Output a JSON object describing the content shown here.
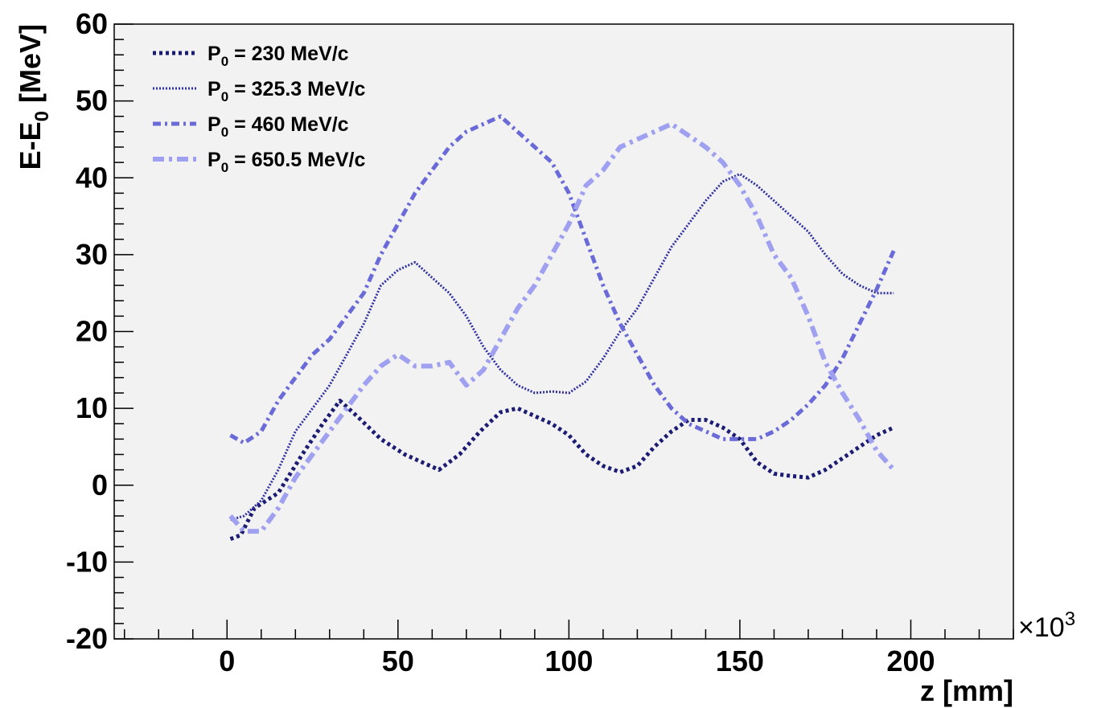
{
  "chart_data": {
    "type": "line",
    "title": "",
    "xlabel": "z [mm]",
    "ylabel_main": "E-E",
    "ylabel_sub": "0",
    "ylabel_unit": " [MeV]",
    "x_exponent_prefix": "×10",
    "x_exponent_power": "3",
    "xlim": [
      -33,
      230
    ],
    "ylim": [
      -20,
      60
    ],
    "x_ticks": [
      0,
      50,
      100,
      150,
      200
    ],
    "x_tick_labels": [
      "0",
      "50",
      "100",
      "150",
      "200"
    ],
    "y_ticks": [
      -20,
      -10,
      0,
      10,
      20,
      30,
      40,
      50,
      60
    ],
    "y_tick_labels": [
      "-20",
      "-10",
      "0",
      "10",
      "20",
      "30",
      "40",
      "50",
      "60"
    ],
    "legend_position": "top-left",
    "grid": false,
    "series": [
      {
        "name": "P0 = 230 MeV/c",
        "label_main": "P",
        "label_sub": "0",
        "label_rest": " = 230 MeV/c",
        "color": "#1c1c73",
        "dash": "4,4",
        "width": 5,
        "x": [
          1,
          4,
          8,
          15,
          22,
          28,
          33,
          38,
          45,
          52,
          57,
          62,
          68,
          74,
          80,
          85,
          90,
          95,
          100,
          105,
          110,
          115,
          120,
          125,
          130,
          135,
          140,
          145,
          150,
          155,
          160,
          165,
          170,
          175,
          180,
          185,
          190,
          195
        ],
        "y": [
          -7,
          -6.5,
          -3,
          -1,
          4,
          8,
          11,
          9,
          6,
          4,
          3,
          2,
          4,
          7,
          9.5,
          10,
          9,
          8,
          6.5,
          4,
          2.5,
          1.7,
          2.5,
          5,
          7,
          8.5,
          8.5,
          7.5,
          6,
          3,
          1.5,
          1.2,
          1,
          2,
          3.5,
          5,
          6.5,
          7.5
        ]
      },
      {
        "name": "P0 = 325.3 MeV/c",
        "label_main": "P",
        "label_sub": "0",
        "label_rest": " = 325.3 MeV/c",
        "color": "#3030a0",
        "dash": "2,2",
        "width": 3,
        "x": [
          1,
          5,
          10,
          15,
          20,
          25,
          30,
          35,
          40,
          45,
          50,
          55,
          60,
          65,
          70,
          75,
          80,
          85,
          90,
          95,
          100,
          105,
          110,
          115,
          120,
          125,
          130,
          135,
          140,
          145,
          150,
          155,
          160,
          165,
          170,
          175,
          180,
          185,
          190,
          195
        ],
        "y": [
          -4.5,
          -4,
          -2,
          2,
          7,
          10,
          13,
          17,
          21,
          26,
          28,
          29,
          27,
          25,
          22,
          18,
          15,
          13,
          12,
          12.2,
          12,
          13.5,
          16.5,
          20,
          23,
          27,
          31,
          34,
          37,
          39.5,
          40.5,
          39,
          37,
          35,
          33,
          30,
          27.5,
          26,
          25,
          25
        ]
      },
      {
        "name": "P0 = 460 MeV/c",
        "label_main": "P",
        "label_sub": "0",
        "label_rest": " = 460 MeV/c",
        "color": "#6a6ad8",
        "dash": "10,5,3,5",
        "width": 5,
        "x": [
          1,
          5,
          10,
          15,
          20,
          25,
          30,
          35,
          40,
          45,
          50,
          55,
          60,
          65,
          70,
          75,
          80,
          85,
          90,
          95,
          100,
          105,
          110,
          115,
          120,
          125,
          130,
          135,
          140,
          145,
          150,
          155,
          160,
          165,
          170,
          175,
          180,
          185,
          190,
          195
        ],
        "y": [
          6.5,
          5.5,
          7,
          11,
          14,
          17,
          19,
          22,
          25,
          30,
          34,
          38,
          41,
          44,
          46,
          47,
          48,
          46,
          44,
          42,
          38,
          32,
          26,
          21,
          17,
          13,
          10,
          8,
          7,
          6,
          6,
          6,
          7,
          8.5,
          10.5,
          13,
          16.5,
          21,
          25.5,
          30.5
        ]
      },
      {
        "name": "P0 = 650.5 MeV/c",
        "label_main": "P",
        "label_sub": "0",
        "label_rest": " = 650.5 MeV/c",
        "color": "#a0a0f0",
        "dash": "14,6,4,6",
        "width": 6,
        "x": [
          1,
          5,
          10,
          15,
          20,
          25,
          30,
          35,
          40,
          45,
          50,
          55,
          60,
          65,
          70,
          75,
          80,
          85,
          90,
          95,
          100,
          105,
          110,
          115,
          120,
          125,
          130,
          135,
          140,
          145,
          150,
          155,
          160,
          165,
          170,
          175,
          180,
          185,
          190,
          195
        ],
        "y": [
          -4,
          -6,
          -6,
          -3,
          1,
          4,
          7,
          10,
          13,
          15.5,
          17,
          15.5,
          15.5,
          16,
          13,
          15,
          19,
          23,
          26,
          30,
          34,
          39,
          41,
          44,
          45,
          46,
          47,
          45.5,
          44,
          42,
          39,
          35,
          30,
          27,
          22,
          16,
          12,
          8.5,
          4.5,
          2
        ]
      }
    ]
  }
}
